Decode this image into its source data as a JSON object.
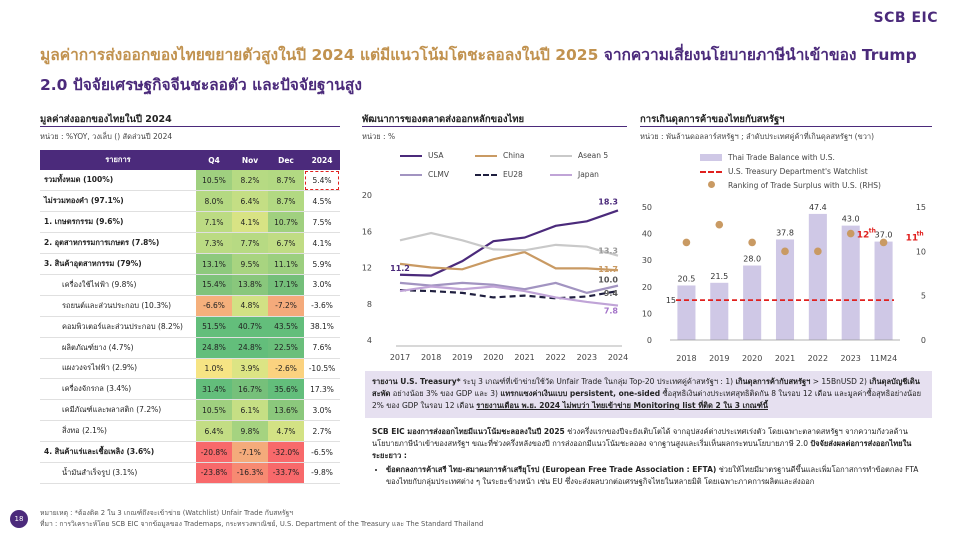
{
  "logo": "SCB EIC",
  "title": {
    "part1": "มูลค่าการส่งออกของไทยขยายตัวสูงในปี 2024 แต่มีแนวโน้มโตชะลอลงในปี 2025",
    "part2": "จากความเสี่ยงนโยบายภาษีนำเข้าของ Trump 2.0 ปัจจัยเศรษฐกิจจีนชะลอตัว และปัจจัยฐานสูง"
  },
  "left": {
    "title": "มูลค่าส่งออกของไทยในปี 2024",
    "subtitle": "หน่วย : %YOY, วงเล็บ () สัดส่วนปี 2024",
    "headers": [
      "รายการ",
      "Q4",
      "Nov",
      "Dec",
      "2024"
    ],
    "rows": [
      {
        "label": "รวมทั้งหมด (100%)",
        "bold": true,
        "indent": false,
        "q4": "10.5%",
        "nov": "8.2%",
        "dec": "8.7%",
        "y": "5.4%",
        "c": [
          "#9fd07f",
          "#b6da83",
          "#b2d982"
        ],
        "hl": true
      },
      {
        "label": "ไม่รวมทองคำ (97.1%)",
        "bold": true,
        "indent": false,
        "q4": "8.0%",
        "nov": "6.4%",
        "dec": "8.7%",
        "y": "4.5%",
        "c": [
          "#b4d982",
          "#c4de84",
          "#b2d982"
        ],
        "hl": false
      },
      {
        "label": "1. เกษตรกรรม (9.6%)",
        "bold": true,
        "indent": false,
        "q4": "7.1%",
        "nov": "4.1%",
        "dec": "10.7%",
        "y": "7.5%",
        "c": [
          "#bcdb83",
          "#d8e384",
          "#a0d07f"
        ],
        "hl": false
      },
      {
        "label": "2. อุตสาหกรรมการเกษตร (7.8%)",
        "bold": true,
        "indent": false,
        "q4": "7.3%",
        "nov": "7.7%",
        "dec": "6.7%",
        "y": "4.1%",
        "c": [
          "#bbdb83",
          "#b7da83",
          "#c0dc84"
        ],
        "hl": false
      },
      {
        "label": "3. สินค้าอุตสาหกรรม (79%)",
        "bold": true,
        "indent": false,
        "q4": "13.1%",
        "nov": "9.5%",
        "dec": "11.1%",
        "y": "5.9%",
        "c": [
          "#8ec97d",
          "#a8d480",
          "#9ccf7f"
        ],
        "hl": false
      },
      {
        "label": "เครื่องใช้ไฟฟ้า (9.8%)",
        "bold": false,
        "indent": true,
        "q4": "15.4%",
        "nov": "13.8%",
        "dec": "17.1%",
        "y": "3.0%",
        "c": [
          "#7fc37b",
          "#89c77c",
          "#74bf7a"
        ],
        "hl": false
      },
      {
        "label": "รถยนต์และส่วนประกอบ (10.3%)",
        "bold": false,
        "indent": true,
        "q4": "-6.6%",
        "nov": "4.8%",
        "dec": "-7.2%",
        "y": "-3.6%",
        "c": [
          "#f5b07c",
          "#d2e184",
          "#f4aa7b"
        ],
        "hl": false
      },
      {
        "label": "คอมพิวเตอร์และส่วนประกอบ (8.2%)",
        "bold": false,
        "indent": true,
        "q4": "51.5%",
        "nov": "40.7%",
        "dec": "43.5%",
        "y": "38.1%",
        "c": [
          "#63be7b",
          "#63be7b",
          "#63be7b"
        ],
        "hl": false
      },
      {
        "label": "ผลิตภัณฑ์ยาง (4.7%)",
        "bold": false,
        "indent": true,
        "q4": "24.8%",
        "nov": "24.8%",
        "dec": "22.5%",
        "y": "7.6%",
        "c": [
          "#63be7b",
          "#63be7b",
          "#6abf7b"
        ],
        "hl": false
      },
      {
        "label": "แผงวงจรไฟฟ้า (2.9%)",
        "bold": false,
        "indent": true,
        "q4": "1.0%",
        "nov": "3.9%",
        "dec": "-2.6%",
        "y": "-10.5%",
        "c": [
          "#f6e484",
          "#dce484",
          "#fbd27f"
        ],
        "hl": false
      },
      {
        "label": "เครื่องจักรกล (3.4%)",
        "bold": false,
        "indent": true,
        "q4": "31.4%",
        "nov": "16.7%",
        "dec": "35.6%",
        "y": "17.3%",
        "c": [
          "#63be7b",
          "#76c07a",
          "#63be7b"
        ],
        "hl": false
      },
      {
        "label": "เคมีภัณฑ์และพลาสติก (7.2%)",
        "bold": false,
        "indent": true,
        "q4": "10.5%",
        "nov": "6.1%",
        "dec": "13.6%",
        "y": "3.0%",
        "c": [
          "#9fd07f",
          "#c6df84",
          "#8bc87c"
        ],
        "hl": false
      },
      {
        "label": "สิ่งทอ (2.1%)",
        "bold": false,
        "indent": true,
        "q4": "6.4%",
        "nov": "9.8%",
        "dec": "4.7%",
        "y": "2.7%",
        "c": [
          "#c3dd84",
          "#a5d380",
          "#d3e284"
        ],
        "hl": false
      },
      {
        "label": "4. สินค้าแร่และเชื้อเพลิง (3.6%)",
        "bold": true,
        "indent": false,
        "q4": "-20.8%",
        "nov": "-7.1%",
        "dec": "-32.0%",
        "y": "-6.5%",
        "c": [
          "#f8696b",
          "#f4ab7b",
          "#f8696b"
        ],
        "hl": false
      },
      {
        "label": "น้ำมันสำเร็จรูป (3.1%)",
        "bold": false,
        "indent": true,
        "q4": "-23.8%",
        "nov": "-16.3%",
        "dec": "-33.7%",
        "y": "-9.8%",
        "c": [
          "#f8696b",
          "#f78a72",
          "#f8696b"
        ],
        "hl": false
      }
    ],
    "note1": "หมายเหตุ : *ต้องติด 2 ใน 3 เกณฑ์ถึงจะเข้าข่าย (Watchlist) Unfair Trade กับสหรัฐฯ",
    "note2": "ที่มา : การวิเคราะห์โดย SCB EIC จากข้อมูลของ Trademaps, กระทรวงพาณิชย์, U.S. Department of the Treasury และ The Standard Thailand"
  },
  "mid": {
    "title": "พัฒนาการของตลาดส่งออกหลักของไทย",
    "subtitle": "หน่วย : %",
    "legend": [
      "USA",
      "China",
      "Asean 5",
      "CLMV",
      "EU28",
      "Japan"
    ]
  },
  "right": {
    "title": "การเกินดุลการค้าของไทยกับสหรัฐฯ",
    "subtitle": "หน่วย : พันล้านดอลลาร์สหรัฐฯ ; ลำดับประเทศคู่ค้าที่เกินดุลสหรัฐฯ (ขวา)",
    "legend": [
      "Thai Trade Balance with U.S.",
      "U.S. Treasury Department's Watchlist",
      "Ranking of Trade Surplus with U.S. (RHS)"
    ],
    "rank_label_12": "12",
    "rank_label_11": "11",
    "rank_sup": "th"
  },
  "page_number": "18",
  "box_us": {
    "lead": "รายงาน U.S. Treasury*",
    "text1": " ระบุ 3 เกณฑ์ที่เข้าข่ายใช้วัด Unfair Trade ในกลุ่ม Top-20 ประเทศคู่ค้าสหรัฐฯ : 1) ",
    "b1": "เกินดุลการค้ากับสหรัฐฯ",
    "text2": " > 15BnUSD 2) ",
    "b2": "เกินดุลบัญชีเดินสะพัด",
    "text3": " อย่างน้อย 3% ของ GDP และ 3) ",
    "b3": "แทรกแซงค่าเงินแบบ persistent, one-sided",
    "text4": " ซื้อสุทธิเงินต่างประเทศสุทธิติดกัน 8 ในรอบ 12 เดือน และมูลค่าซื้อสุทธิอย่างน้อย 2% ของ GDP ในรอบ 12 เดือน ",
    "u1": "รายงานเดือน พ.ย. 2024 ไม่พบว่า ไทยเข้าข่าย Monitoring list ที่ติด 2 ใน 3 เกณฑ์นี้"
  },
  "box_eic": {
    "lead": "SCB EIC มองการส่งออกไทยมีแนวโน้มชะลอลงในปี 2025",
    "text1": " ช่วงครึ่งแรกของปีจะยังเติบโตได้ จากอุปสงค์ต่างประเทศเร่งตัว โดยเฉพาะตลาดสหรัฐฯ จากความกังวลด้านนโยบายภาษีนำเข้าของสหรัฐฯ ขณะที่ช่วงครึ่งหลังของปี การส่งออกมีแนวโน้มชะลอลง จากฐานสูงและเริ่มเห็นผลกระทบนโยบายภาษี 2.0 ",
    "b1": "ปัจจัยส่งผลต่อการส่งออกไทยในระยะยาว :",
    "bullet_lead": "ข้อตกลงการค้าเสรี ไทย-สมาคมการค้าเสรียุโรป (European Free Trade Association : EFTA)",
    "bullet_text": " ช่วยให้ไทยมีมาตรฐานดีขึ้นและเพิ่มโอกาสการทำข้อตกลง FTA ของไทยกับกลุ่มประเทศต่าง ๆ ในระยะข้างหน้า เช่น EU ซึ่งจะส่งผลบวกต่อเศรษฐกิจไทยในหลายมิติ โดยเฉพาะภาคการผลิตและส่งออก"
  },
  "chart_data": [
    {
      "type": "line",
      "x": [
        "2017",
        "2018",
        "2019",
        "2020",
        "2021",
        "2022",
        "2023",
        "2024"
      ],
      "ylim": [
        4,
        20
      ],
      "yticks": [
        4,
        8,
        12,
        16,
        20
      ],
      "series": [
        {
          "name": "USA",
          "color": "#4b2a7b",
          "dash": "",
          "values": [
            11.2,
            11.1,
            12.7,
            14.9,
            15.3,
            16.6,
            17.1,
            18.3
          ]
        },
        {
          "name": "China",
          "color": "#c99a63",
          "dash": "",
          "values": [
            12.4,
            12.0,
            11.8,
            12.9,
            13.7,
            11.9,
            11.9,
            11.7
          ]
        },
        {
          "name": "Asean 5",
          "color": "#c9c9c9",
          "dash": "",
          "values": [
            15.0,
            15.8,
            15.0,
            14.0,
            13.9,
            14.5,
            14.3,
            13.3
          ]
        },
        {
          "name": "CLMV",
          "color": "#a294c1",
          "dash": "",
          "values": [
            10.3,
            10.0,
            10.3,
            10.1,
            9.6,
            10.3,
            9.2,
            10.0
          ]
        },
        {
          "name": "EU28",
          "color": "#1f1f3f",
          "dash": "6,4",
          "values": [
            9.5,
            9.4,
            9.2,
            8.7,
            8.9,
            8.6,
            8.8,
            9.4
          ]
        },
        {
          "name": "Japan",
          "color": "#c0a4d7",
          "dash": "",
          "values": [
            9.4,
            9.9,
            9.6,
            9.9,
            9.4,
            8.7,
            8.2,
            7.8
          ]
        }
      ],
      "labels": {
        "USA_2017": "11.2",
        "USA_2024": "18.3",
        "Asean5_2024": "13.3",
        "China_2024": "11.7",
        "CLMV_2024": "10.0",
        "EU28_2024": "9.4",
        "Japan_2024": "7.8"
      }
    },
    {
      "type": "bar",
      "categories": [
        "2018",
        "2019",
        "2020",
        "2021",
        "2022",
        "2023",
        "11M24"
      ],
      "values": [
        20.5,
        21.5,
        28.0,
        37.8,
        47.4,
        43.0,
        37.0
      ],
      "value_labels": [
        "20.5",
        "21.5",
        "28.0",
        "37.8",
        "47.4",
        "43.0",
        "37.0"
      ],
      "watchlist": 15,
      "watchlist_label": "15",
      "rank": [
        11,
        13,
        11,
        10,
        10,
        12,
        11
      ],
      "ylim": [
        0,
        50
      ],
      "yticks": [
        0,
        10,
        20,
        30,
        40,
        50
      ],
      "y2lim": [
        0,
        15
      ],
      "y2ticks": [
        0,
        5,
        10,
        15
      ],
      "bar_color": "#cfc8e6",
      "line_color": "#e0201e",
      "dot_color": "#c99a63"
    }
  ]
}
